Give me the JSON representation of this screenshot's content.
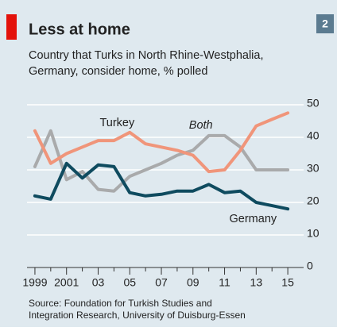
{
  "badge": "2",
  "chart_data": {
    "type": "line",
    "title": "Less at home",
    "subtitle": [
      "Country that Turks in North Rhine-Westphalia,",
      "Germany, consider home, % polled"
    ],
    "source": [
      "Source: Foundation for Turkish Studies and",
      "Integration Research, University of Duisburg-Essen"
    ],
    "x": [
      1999,
      2000,
      2001,
      2002,
      2003,
      2004,
      2005,
      2006,
      2007,
      2008,
      2009,
      2010,
      2011,
      2012,
      2013,
      2014,
      2015
    ],
    "series": [
      {
        "name": "Turkey",
        "color": "#f0957a",
        "values": [
          42,
          32,
          35,
          37,
          39,
          39,
          41.5,
          38,
          37,
          36,
          34.5,
          29.5,
          30,
          36,
          43.5,
          45.5,
          47.5
        ]
      },
      {
        "name": "Both",
        "color": "#a9aaab",
        "values": [
          31,
          42,
          27,
          29.5,
          24,
          23.5,
          28,
          30,
          32,
          34.5,
          36,
          40.5,
          40.5,
          37,
          30,
          30,
          30
        ]
      },
      {
        "name": "Germany",
        "color": "#0f4b5f",
        "values": [
          22,
          21,
          32,
          27.5,
          31.5,
          31,
          23,
          22,
          22.5,
          23.5,
          23.5,
          25.5,
          23,
          23.5,
          20,
          19,
          18
        ]
      }
    ],
    "xlim": [
      1998.5,
      2015.8
    ],
    "xticks": [
      1999,
      2001,
      {
        "value": 2003,
        "label": "03"
      },
      {
        "value": 2005,
        "label": "05"
      },
      {
        "value": 2007,
        "label": "07"
      },
      {
        "value": 2009,
        "label": "09"
      },
      {
        "value": 2011,
        "label": "11"
      },
      {
        "value": 2013,
        "label": "13"
      },
      {
        "value": 2015,
        "label": "15"
      }
    ],
    "xminorticks": [
      2000,
      2002,
      2004,
      2006,
      2008,
      2010,
      2012,
      2014
    ],
    "ylim": [
      0,
      50
    ],
    "yticks": [
      0,
      10,
      20,
      30,
      40,
      50
    ],
    "grid": true
  }
}
